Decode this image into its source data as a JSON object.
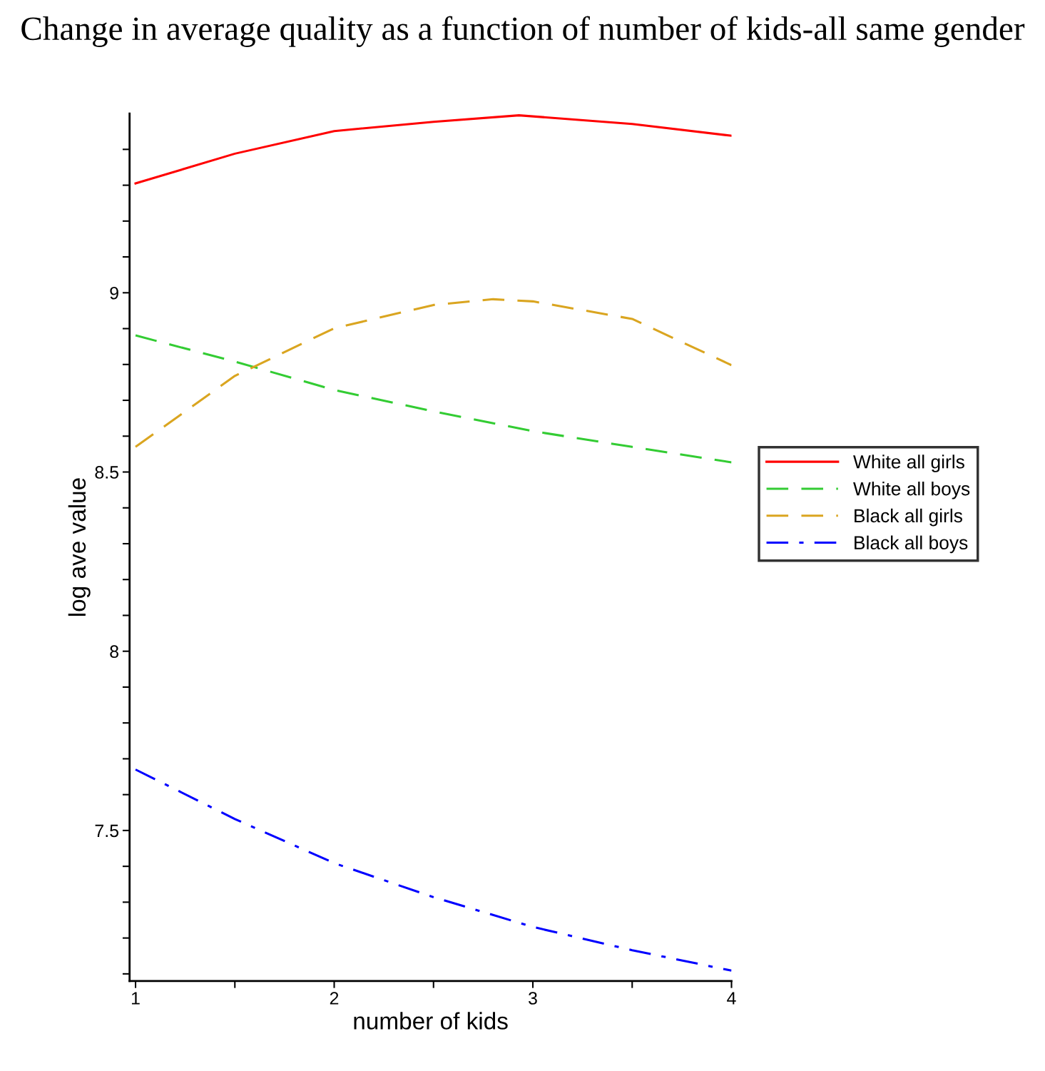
{
  "chart_data": {
    "type": "line",
    "title": "Change in average quality as a function of number of kids-all same gender",
    "xlabel": "number of kids",
    "ylabel": "log ave value",
    "series": [
      {
        "name": "White all girls",
        "color": "#ff0000",
        "line_style": "solid",
        "x": [
          1,
          1.5,
          2,
          2.5,
          2.93,
          3.5,
          4
        ],
        "values": [
          9.305,
          9.388,
          9.451,
          9.477,
          9.495,
          9.471,
          9.438
        ]
      },
      {
        "name": "White all boys",
        "color": "#33cc33",
        "line_style": "dashed",
        "x": [
          1,
          1.5,
          2,
          2.5,
          3,
          3.5,
          4
        ],
        "values": [
          8.881,
          8.808,
          8.729,
          8.669,
          8.614,
          8.57,
          8.527
        ]
      },
      {
        "name": "Black all girls",
        "color": "#daa520",
        "line_style": "dashed",
        "x": [
          1,
          1.5,
          2,
          2.5,
          2.8,
          3,
          3.5,
          4
        ],
        "values": [
          8.57,
          8.768,
          8.901,
          8.966,
          8.982,
          8.976,
          8.927,
          8.798
        ]
      },
      {
        "name": "Black all boys",
        "color": "#0000ff",
        "line_style": "dashdot",
        "x": [
          1,
          1.5,
          2,
          2.5,
          3,
          3.5,
          4
        ],
        "values": [
          7.67,
          7.532,
          7.409,
          7.314,
          7.231,
          7.166,
          7.109
        ]
      }
    ],
    "xlim": [
      0.97,
      4
    ],
    "ylim": [
      7.08,
      9.5
    ],
    "xticks": [
      1,
      {
        "value": 1.5,
        "label": null
      },
      2,
      {
        "value": 2.5,
        "label": null
      },
      3,
      {
        "value": 3.5,
        "label": null
      },
      4
    ],
    "yticks": [
      {
        "value": 7.1,
        "label": null
      },
      {
        "value": 7.2,
        "label": null
      },
      {
        "value": 7.3,
        "label": null
      },
      {
        "value": 7.4,
        "label": null
      },
      7.5,
      {
        "value": 7.6,
        "label": null
      },
      {
        "value": 7.7,
        "label": null
      },
      {
        "value": 7.8,
        "label": null
      },
      {
        "value": 7.9,
        "label": null
      },
      8,
      {
        "value": 8.1,
        "label": null
      },
      {
        "value": 8.2,
        "label": null
      },
      {
        "value": 8.3,
        "label": null
      },
      {
        "value": 8.4,
        "label": null
      },
      8.5,
      {
        "value": 8.6,
        "label": null
      },
      {
        "value": 8.7,
        "label": null
      },
      {
        "value": 8.8,
        "label": null
      },
      {
        "value": 8.9,
        "label": null
      },
      9,
      {
        "value": 9.1,
        "label": null
      },
      {
        "value": 9.2,
        "label": null
      },
      {
        "value": 9.3,
        "label": null
      },
      {
        "value": 9.4,
        "label": null
      }
    ],
    "grid": false,
    "legend": "right"
  }
}
